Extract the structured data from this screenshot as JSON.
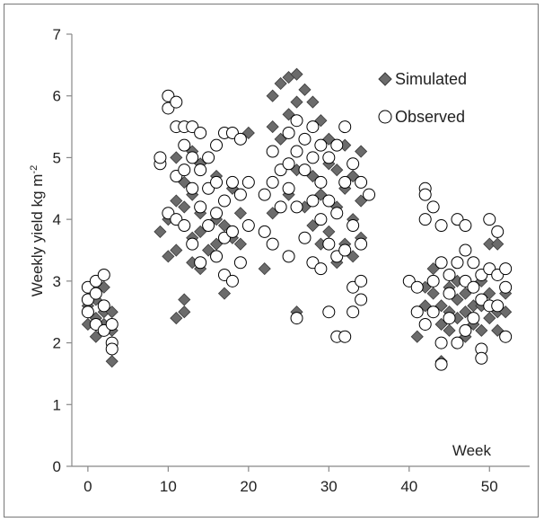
{
  "chart_data": {
    "type": "scatter",
    "title": "",
    "xlabel": "Week",
    "ylabel_main": "Weekly yield kg m",
    "ylabel_exp": "-2",
    "xlim": [
      -2,
      55
    ],
    "ylim": [
      0,
      7
    ],
    "xticks": [
      0,
      10,
      20,
      30,
      40,
      50
    ],
    "yticks": [
      0,
      1,
      2,
      3,
      4,
      5,
      6,
      7
    ],
    "grid": false,
    "legend_position": "top-right",
    "series": [
      {
        "name": "Simulated",
        "marker": "diamond",
        "color": "#6b6b6b",
        "points": [
          [
            0,
            2.3
          ],
          [
            0,
            2.5
          ],
          [
            0,
            2.6
          ],
          [
            1,
            2.1
          ],
          [
            1,
            2.4
          ],
          [
            1,
            2.7
          ],
          [
            2,
            2.9
          ],
          [
            2,
            2.5
          ],
          [
            2,
            2.3
          ],
          [
            3,
            1.7
          ],
          [
            3,
            2.5
          ],
          [
            3,
            2.2
          ],
          [
            9,
            3.8
          ],
          [
            10,
            3.4
          ],
          [
            10,
            4.0
          ],
          [
            11,
            2.4
          ],
          [
            11,
            3.5
          ],
          [
            11,
            4.3
          ],
          [
            11,
            5.0
          ],
          [
            12,
            2.5
          ],
          [
            12,
            2.7
          ],
          [
            12,
            3.9
          ],
          [
            12,
            4.2
          ],
          [
            12,
            4.6
          ],
          [
            13,
            3.3
          ],
          [
            13,
            3.7
          ],
          [
            13,
            4.4
          ],
          [
            13,
            5.1
          ],
          [
            14,
            3.2
          ],
          [
            14,
            3.8
          ],
          [
            14,
            4.1
          ],
          [
            14,
            4.9
          ],
          [
            15,
            3.5
          ],
          [
            15,
            3.9
          ],
          [
            15,
            4.5
          ],
          [
            16,
            3.6
          ],
          [
            16,
            4.0
          ],
          [
            16,
            4.7
          ],
          [
            17,
            2.8
          ],
          [
            17,
            3.1
          ],
          [
            17,
            3.9
          ],
          [
            17,
            4.3
          ],
          [
            18,
            3.7
          ],
          [
            18,
            4.5
          ],
          [
            18,
            5.4
          ],
          [
            19,
            3.6
          ],
          [
            19,
            4.1
          ],
          [
            20,
            3.9
          ],
          [
            20,
            5.4
          ],
          [
            22,
            3.2
          ],
          [
            23,
            4.1
          ],
          [
            23,
            5.5
          ],
          [
            23,
            6.0
          ],
          [
            24,
            5.3
          ],
          [
            24,
            6.2
          ],
          [
            25,
            4.4
          ],
          [
            25,
            5.7
          ],
          [
            25,
            6.3
          ],
          [
            26,
            2.5
          ],
          [
            26,
            4.8
          ],
          [
            26,
            5.9
          ],
          [
            26,
            6.35
          ],
          [
            27,
            4.2
          ],
          [
            27,
            5.3
          ],
          [
            27,
            6.1
          ],
          [
            28,
            3.9
          ],
          [
            28,
            4.7
          ],
          [
            28,
            5.9
          ],
          [
            29,
            3.6
          ],
          [
            29,
            4.4
          ],
          [
            29,
            5.6
          ],
          [
            30,
            3.8
          ],
          [
            30,
            4.9
          ],
          [
            30,
            5.3
          ],
          [
            31,
            3.3
          ],
          [
            31,
            4.2
          ],
          [
            31,
            4.8
          ],
          [
            32,
            3.6
          ],
          [
            32,
            4.5
          ],
          [
            32,
            5.2
          ],
          [
            33,
            3.4
          ],
          [
            33,
            4.0
          ],
          [
            33,
            4.7
          ],
          [
            34,
            3.7
          ],
          [
            34,
            4.3
          ],
          [
            34,
            5.1
          ],
          [
            41,
            2.1
          ],
          [
            42,
            2.6
          ],
          [
            42,
            2.9
          ],
          [
            43,
            3.2
          ],
          [
            43,
            2.8
          ],
          [
            44,
            1.7
          ],
          [
            44,
            2.3
          ],
          [
            44,
            2.6
          ],
          [
            45,
            2.2
          ],
          [
            45,
            2.5
          ],
          [
            45,
            2.9
          ],
          [
            46,
            2.4
          ],
          [
            46,
            2.7
          ],
          [
            46,
            3.0
          ],
          [
            47,
            2.1
          ],
          [
            47,
            2.5
          ],
          [
            47,
            2.8
          ],
          [
            48,
            2.3
          ],
          [
            48,
            2.6
          ],
          [
            48,
            2.9
          ],
          [
            49,
            2.2
          ],
          [
            49,
            2.6
          ],
          [
            49,
            3.0
          ],
          [
            50,
            3.6
          ],
          [
            50,
            2.4
          ],
          [
            50,
            2.8
          ],
          [
            51,
            3.6
          ],
          [
            51,
            2.5
          ],
          [
            51,
            2.2
          ],
          [
            52,
            2.5
          ],
          [
            52,
            2.8
          ]
        ]
      },
      {
        "name": "Observed",
        "marker": "circle",
        "color": "#000000",
        "points": [
          [
            0,
            2.9
          ],
          [
            0,
            2.7
          ],
          [
            0,
            2.5
          ],
          [
            1,
            3.0
          ],
          [
            1,
            2.8
          ],
          [
            1,
            2.3
          ],
          [
            2,
            3.1
          ],
          [
            2,
            2.6
          ],
          [
            2,
            2.2
          ],
          [
            3,
            2.3
          ],
          [
            3,
            2.0
          ],
          [
            3,
            1.9
          ],
          [
            9,
            4.9
          ],
          [
            9,
            5.0
          ],
          [
            10,
            6.0
          ],
          [
            10,
            5.8
          ],
          [
            10,
            4.1
          ],
          [
            11,
            5.9
          ],
          [
            11,
            5.5
          ],
          [
            11,
            4.7
          ],
          [
            11,
            4.0
          ],
          [
            12,
            5.5
          ],
          [
            12,
            5.2
          ],
          [
            12,
            4.8
          ],
          [
            12,
            3.9
          ],
          [
            13,
            5.5
          ],
          [
            13,
            5.0
          ],
          [
            13,
            4.5
          ],
          [
            13,
            3.6
          ],
          [
            14,
            5.4
          ],
          [
            14,
            4.8
          ],
          [
            14,
            4.2
          ],
          [
            14,
            3.3
          ],
          [
            15,
            5.0
          ],
          [
            15,
            4.5
          ],
          [
            15,
            3.9
          ],
          [
            16,
            5.2
          ],
          [
            16,
            4.6
          ],
          [
            16,
            4.1
          ],
          [
            16,
            3.4
          ],
          [
            17,
            5.4
          ],
          [
            17,
            4.3
          ],
          [
            17,
            3.7
          ],
          [
            17,
            3.1
          ],
          [
            18,
            5.4
          ],
          [
            18,
            4.6
          ],
          [
            18,
            3.8
          ],
          [
            18,
            3.0
          ],
          [
            19,
            5.3
          ],
          [
            19,
            4.4
          ],
          [
            19,
            3.3
          ],
          [
            20,
            4.6
          ],
          [
            20,
            3.9
          ],
          [
            22,
            4.4
          ],
          [
            22,
            3.8
          ],
          [
            23,
            5.1
          ],
          [
            23,
            4.6
          ],
          [
            23,
            3.6
          ],
          [
            24,
            4.8
          ],
          [
            24,
            4.2
          ],
          [
            25,
            5.4
          ],
          [
            25,
            4.9
          ],
          [
            25,
            4.5
          ],
          [
            25,
            3.4
          ],
          [
            26,
            5.6
          ],
          [
            26,
            5.1
          ],
          [
            26,
            4.2
          ],
          [
            26,
            2.4
          ],
          [
            27,
            5.3
          ],
          [
            27,
            4.8
          ],
          [
            27,
            3.7
          ],
          [
            28,
            5.5
          ],
          [
            28,
            5.0
          ],
          [
            28,
            4.3
          ],
          [
            28,
            3.3
          ],
          [
            29,
            5.2
          ],
          [
            29,
            4.6
          ],
          [
            29,
            4.0
          ],
          [
            29,
            3.2
          ],
          [
            30,
            5.0
          ],
          [
            30,
            4.3
          ],
          [
            30,
            3.6
          ],
          [
            30,
            2.5
          ],
          [
            31,
            5.2
          ],
          [
            31,
            4.1
          ],
          [
            31,
            3.4
          ],
          [
            31,
            2.1
          ],
          [
            32,
            5.5
          ],
          [
            32,
            4.6
          ],
          [
            32,
            3.5
          ],
          [
            32,
            2.1
          ],
          [
            33,
            4.9
          ],
          [
            33,
            3.9
          ],
          [
            33,
            2.9
          ],
          [
            33,
            2.5
          ],
          [
            34,
            4.6
          ],
          [
            34,
            3.6
          ],
          [
            34,
            3.0
          ],
          [
            34,
            2.7
          ],
          [
            35,
            4.4
          ],
          [
            40,
            3.0
          ],
          [
            41,
            2.9
          ],
          [
            41,
            2.5
          ],
          [
            42,
            4.5
          ],
          [
            42,
            4.4
          ],
          [
            42,
            4.0
          ],
          [
            42,
            2.3
          ],
          [
            43,
            4.2
          ],
          [
            43,
            3.0
          ],
          [
            43,
            2.5
          ],
          [
            44,
            3.9
          ],
          [
            44,
            3.3
          ],
          [
            44,
            2.0
          ],
          [
            44,
            1.65
          ],
          [
            45,
            3.1
          ],
          [
            45,
            2.8
          ],
          [
            45,
            2.4
          ],
          [
            46,
            4.0
          ],
          [
            46,
            3.3
          ],
          [
            46,
            2.0
          ],
          [
            47,
            3.9
          ],
          [
            47,
            3.5
          ],
          [
            47,
            3.0
          ],
          [
            47,
            2.2
          ],
          [
            48,
            3.3
          ],
          [
            48,
            2.9
          ],
          [
            48,
            2.4
          ],
          [
            49,
            3.1
          ],
          [
            49,
            2.7
          ],
          [
            49,
            1.9
          ],
          [
            49,
            1.75
          ],
          [
            50,
            4.0
          ],
          [
            50,
            3.2
          ],
          [
            50,
            2.6
          ],
          [
            51,
            3.8
          ],
          [
            51,
            3.1
          ],
          [
            51,
            2.6
          ],
          [
            52,
            3.2
          ],
          [
            52,
            2.9
          ],
          [
            52,
            2.1
          ]
        ]
      }
    ]
  }
}
